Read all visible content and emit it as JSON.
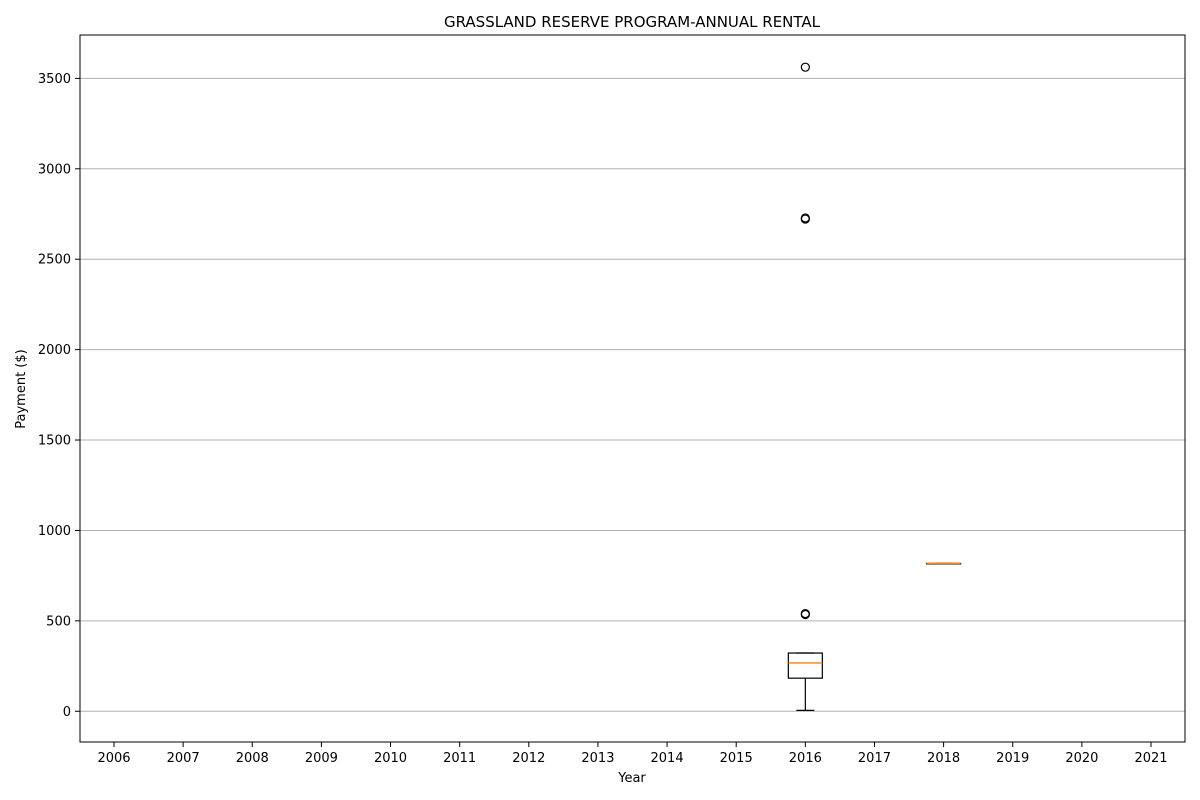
{
  "chart_data": {
    "type": "boxplot",
    "title": "GRASSLAND RESERVE PROGRAM-ANNUAL RENTAL",
    "xlabel": "Year",
    "ylabel": "Payment ($)",
    "categories": [
      "2006",
      "2007",
      "2008",
      "2009",
      "2010",
      "2011",
      "2012",
      "2013",
      "2014",
      "2015",
      "2016",
      "2017",
      "2018",
      "2019",
      "2020",
      "2021"
    ],
    "ylim": [
      -170,
      3740
    ],
    "yticks": [
      0,
      500,
      1000,
      1500,
      2000,
      2500,
      3000,
      3500
    ],
    "grid": "horizontal",
    "boxes": [
      {
        "category": "2016",
        "whisker_low": 5,
        "q1": 183,
        "median": 267,
        "q3": 322,
        "whisker_high": 322,
        "outliers": [
          535,
          540,
          2722,
          2728,
          3562
        ]
      },
      {
        "category": "2018",
        "whisker_low": 818,
        "q1": 818,
        "median": 818,
        "q3": 818,
        "whisker_high": 818,
        "outliers": []
      }
    ],
    "colors": {
      "box": "#000000",
      "median": "#ff7f0e",
      "grid": "#b0b0b0"
    }
  }
}
